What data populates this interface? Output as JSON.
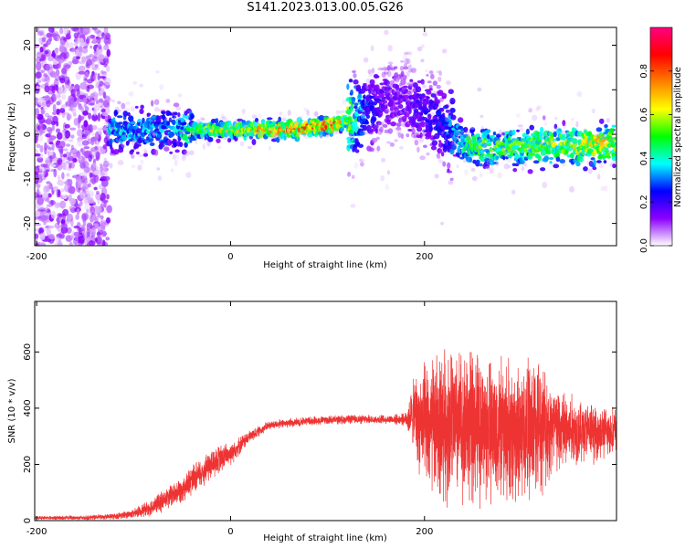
{
  "title": "S141.2023.013.00.05.G26",
  "chart_data": [
    {
      "type": "heatmap",
      "xlabel": "Height of straight line (km)",
      "ylabel": "Frequency (Hz)",
      "xlim": [
        -202,
        398
      ],
      "ylim": [
        -25,
        24
      ],
      "xticks": [
        -200,
        0,
        200
      ],
      "yticks": [
        -20,
        -10,
        0,
        10,
        20
      ],
      "colorbar": {
        "label": "Normalized spectral amplitude",
        "range": [
          0,
          1
        ],
        "ticks": [
          "0.0",
          "0.2",
          "0.4",
          "0.6",
          "0.8"
        ],
        "colormap": [
          "#ffffff",
          "#8b00ff",
          "#0000ff",
          "#00ffff",
          "#00ff00",
          "#ffff00",
          "#ff8000",
          "#ff0000",
          "#ff0080"
        ]
      },
      "ridge": {
        "x": [
          -120,
          -100,
          -80,
          -60,
          -40,
          -20,
          0,
          20,
          40,
          60,
          80,
          100,
          120,
          140,
          160,
          180,
          200,
          220,
          240,
          260,
          280,
          300,
          320,
          340,
          360,
          380,
          398
        ],
        "freq": [
          1,
          1,
          1,
          1,
          1,
          1,
          1,
          1,
          1,
          1,
          1.5,
          2,
          3,
          5,
          8,
          8,
          5,
          2,
          -2,
          -3,
          -3,
          -2.5,
          -2.5,
          -2.5,
          -2.5,
          -2,
          -2
        ],
        "amplitude": [
          0.35,
          0.35,
          0.35,
          0.3,
          0.5,
          0.55,
          0.6,
          0.65,
          0.7,
          0.75,
          0.75,
          0.8,
          0.6,
          0.25,
          0.15,
          0.15,
          0.2,
          0.25,
          0.45,
          0.5,
          0.5,
          0.5,
          0.55,
          0.55,
          0.6,
          0.65,
          0.6
        ]
      },
      "noise_region_x": [
        -202,
        -125
      ]
    },
    {
      "type": "line",
      "xlabel": "Height of straight line (km)",
      "ylabel": "SNR (10 * v/v)",
      "xlim": [
        -202,
        398
      ],
      "ylim": [
        0,
        780
      ],
      "xticks": [
        -200,
        0,
        200
      ],
      "yticks": [
        0,
        200,
        400,
        600
      ],
      "color": "#ee3333",
      "envelope": {
        "x": [
          -202,
          -150,
          -120,
          -100,
          -80,
          -60,
          -40,
          -20,
          0,
          20,
          40,
          80,
          120,
          160,
          180,
          190,
          200,
          220,
          240,
          260,
          280,
          300,
          320,
          340,
          360,
          380,
          398
        ],
        "mean": [
          10,
          10,
          15,
          25,
          50,
          90,
          140,
          200,
          240,
          300,
          340,
          355,
          360,
          360,
          360,
          380,
          320,
          350,
          340,
          330,
          320,
          320,
          340,
          320,
          320,
          310,
          320
        ],
        "spread": [
          6,
          8,
          10,
          15,
          30,
          40,
          50,
          55,
          40,
          20,
          15,
          15,
          15,
          15,
          20,
          130,
          220,
          260,
          260,
          250,
          240,
          250,
          220,
          150,
          110,
          90,
          80
        ]
      }
    }
  ]
}
